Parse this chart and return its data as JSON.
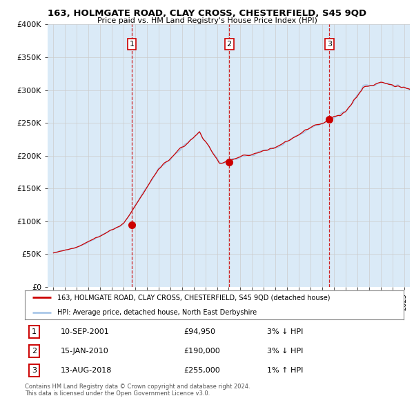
{
  "title": "163, HOLMGATE ROAD, CLAY CROSS, CHESTERFIELD, S45 9QD",
  "subtitle": "Price paid vs. HM Land Registry's House Price Index (HPI)",
  "ylabel_ticks": [
    "£0",
    "£50K",
    "£100K",
    "£150K",
    "£200K",
    "£250K",
    "£300K",
    "£350K",
    "£400K"
  ],
  "ytick_values": [
    0,
    50000,
    100000,
    150000,
    200000,
    250000,
    300000,
    350000,
    400000
  ],
  "ylim": [
    0,
    400000
  ],
  "xlim_start": 1994.5,
  "xlim_end": 2025.5,
  "sales": [
    {
      "num": 1,
      "date": "10-SEP-2001",
      "price": 94950,
      "year": 2001.7,
      "pct": "3%",
      "dir": "↓"
    },
    {
      "num": 2,
      "date": "15-JAN-2010",
      "price": 190000,
      "year": 2010.04,
      "pct": "3%",
      "dir": "↓"
    },
    {
      "num": 3,
      "date": "13-AUG-2018",
      "price": 255000,
      "year": 2018.62,
      "pct": "1%",
      "dir": "↑"
    }
  ],
  "hpi_line_color": "#aac8e8",
  "price_line_color": "#cc0000",
  "sale_dot_color": "#cc0000",
  "vline_color": "#cc0000",
  "grid_color": "#cccccc",
  "bg_color": "#daeaf7",
  "footer_text": "Contains HM Land Registry data © Crown copyright and database right 2024.\nThis data is licensed under the Open Government Licence v3.0.",
  "legend_entries": [
    "163, HOLMGATE ROAD, CLAY CROSS, CHESTERFIELD, S45 9QD (detached house)",
    "HPI: Average price, detached house, North East Derbyshire"
  ]
}
